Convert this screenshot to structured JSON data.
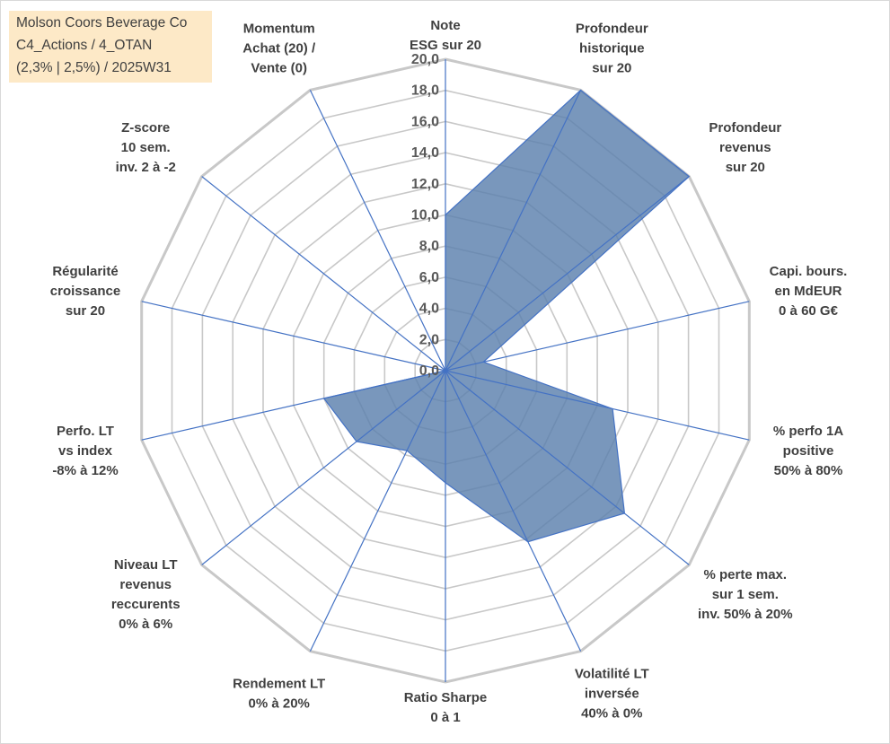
{
  "title": {
    "lines": [
      "Molson Coors Beverage Co",
      "C4_Actions / 4_OTAN",
      "(2,3% | 2,5%) / 2025W31"
    ],
    "background": "#fde9c7"
  },
  "chart_data": {
    "type": "radar",
    "rmin": 0,
    "rmax": 20,
    "tick_step": 2,
    "tick_labels": [
      "0,0",
      "2,0",
      "4,0",
      "6,0",
      "8,0",
      "10,0",
      "12,0",
      "14,0",
      "16,0",
      "18,0",
      "20,0"
    ],
    "axes": [
      {
        "label": [
          "Note",
          "ESG sur 20"
        ],
        "value": 10
      },
      {
        "label": [
          "Profondeur",
          "historique",
          "sur 20"
        ],
        "value": 20
      },
      {
        "label": [
          "Profondeur",
          "revenus",
          "sur 20"
        ],
        "value": 20
      },
      {
        "label": [
          "Capi. bours.",
          "en MdEUR",
          "0 à 60 G€"
        ],
        "value": 2.5
      },
      {
        "label": [
          "% perfo 1A",
          "positive",
          "50% à 80%"
        ],
        "value": 11.0
      },
      {
        "label": [
          "% perte max.",
          "sur 1 sem.",
          "inv. 50% à 20%"
        ],
        "value": 14.7
      },
      {
        "label": [
          "Volatilité LT",
          "inversée",
          "40% à 0%"
        ],
        "value": 12.2
      },
      {
        "label": [
          "Ratio Sharpe",
          "0 à 1"
        ],
        "value": 7.2
      },
      {
        "label": [
          "Rendement LT",
          "0% à 20%"
        ],
        "value": 5.7
      },
      {
        "label": [
          "Niveau LT",
          "revenus",
          "reccurents",
          "0% à 6%"
        ],
        "value": 7.3
      },
      {
        "label": [
          "Perfo. LT",
          "vs index",
          "-8% à 12%"
        ],
        "value": 8.0
      },
      {
        "label": [
          "Régularité",
          "croissance",
          "sur 20"
        ],
        "value": 0
      },
      {
        "label": [
          "Z-score",
          "10 sem.",
          "inv. 2 à -2"
        ],
        "value": 0
      },
      {
        "label": [
          "Momentum",
          "Achat (20) /",
          "Vente (0)"
        ],
        "value": 0
      }
    ],
    "series": [
      {
        "values": [
          10,
          20,
          20,
          2.5,
          11.0,
          14.7,
          12.2,
          7.2,
          5.7,
          7.3,
          8.0,
          0,
          0,
          0
        ]
      }
    ],
    "fill_color": "#5b80ad",
    "fill_opacity": 0.82,
    "stroke_color": "#4472c4",
    "grid_color": "#c8c8c8",
    "spoke_color": "#4472c4"
  }
}
